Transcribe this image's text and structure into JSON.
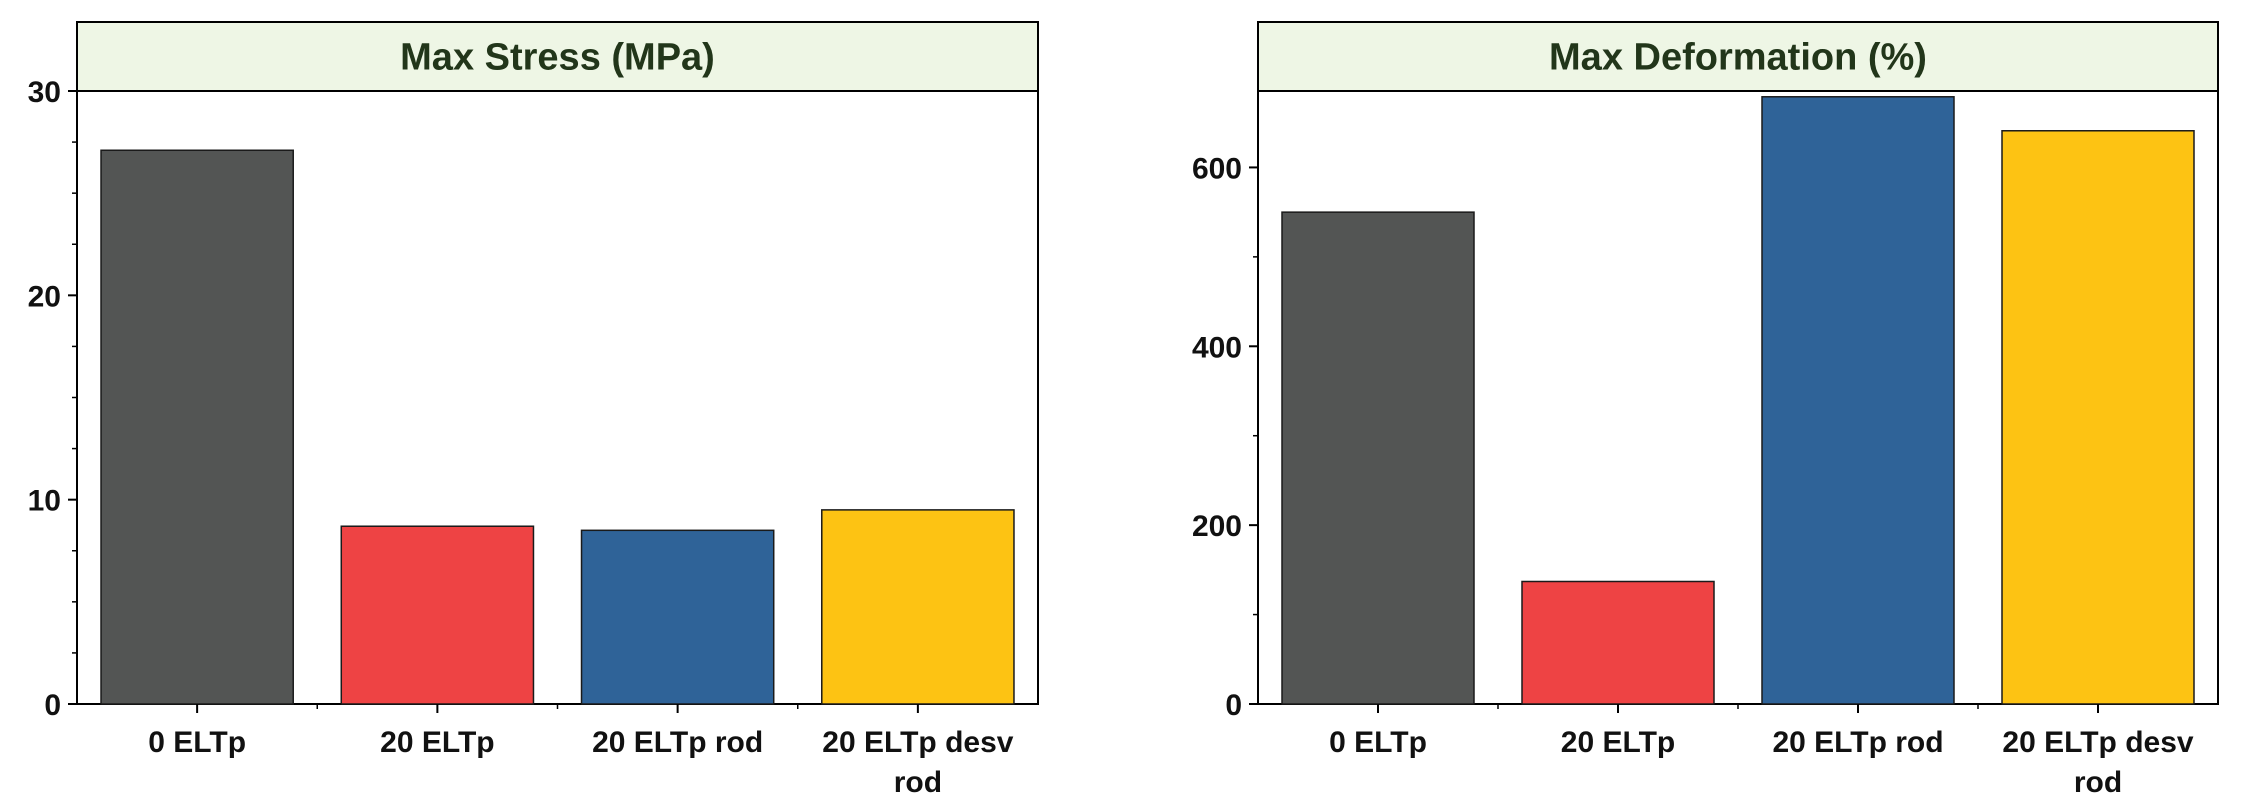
{
  "chart_data": [
    {
      "type": "bar",
      "title": "Max Stress (MPa)",
      "categories": [
        "0 ELTp",
        "20 ELTp",
        "20 ELTp rod",
        "20 ELTp desv rod"
      ],
      "category_lines": [
        [
          "0 ELTp"
        ],
        [
          "20 ELTp"
        ],
        [
          "20 ELTp rod"
        ],
        [
          "20 ELTp desv",
          "rod"
        ]
      ],
      "values": [
        27.1,
        8.7,
        8.5,
        9.5
      ],
      "colors": [
        "#535554",
        "#ee4344",
        "#2f6398",
        "#fdc313"
      ],
      "ylim": [
        0,
        30
      ],
      "y_major_ticks": [
        0,
        10,
        20,
        30
      ],
      "y_minor_step": 2.5,
      "xlabel": "",
      "ylabel": "",
      "grid": false,
      "title_band_color": "#eef6e5"
    },
    {
      "type": "bar",
      "title": "Max Deformation (%)",
      "categories": [
        "0 ELTp",
        "20 ELTp",
        "20 ELTp rod",
        "20 ELTp desv rod"
      ],
      "category_lines": [
        [
          "0 ELTp"
        ],
        [
          "20 ELTp"
        ],
        [
          "20 ELTp rod"
        ],
        [
          "20 ELTp desv",
          "rod"
        ]
      ],
      "values": [
        550,
        137,
        679,
        641
      ],
      "colors": [
        "#535554",
        "#ee4344",
        "#2f6398",
        "#fdc313"
      ],
      "ylim": [
        0,
        700
      ],
      "y_major_ticks": [
        0,
        200,
        400,
        600
      ],
      "y_minor_step": 100,
      "xlabel": "",
      "ylabel": "",
      "grid": false,
      "title_band_color": "#eef6e5"
    }
  ]
}
